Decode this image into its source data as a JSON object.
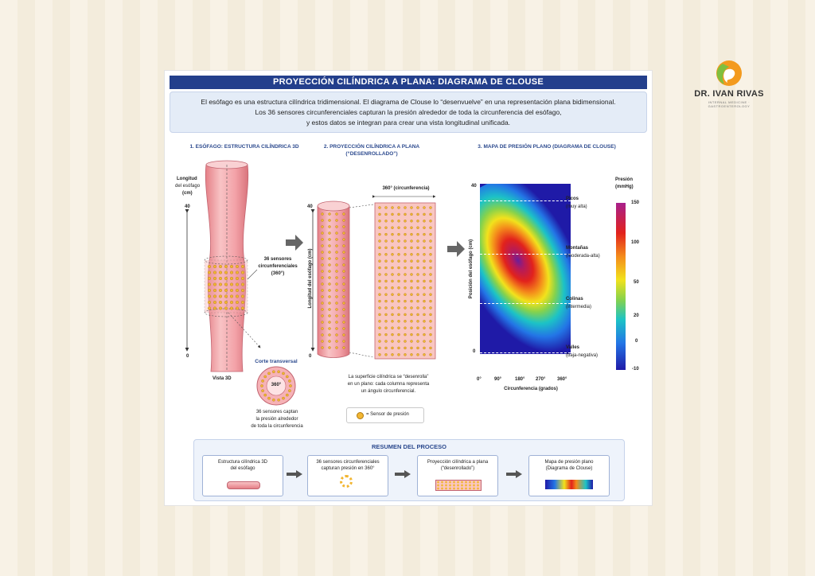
{
  "logo": {
    "name": "DR. IVAN RIVAS",
    "sub": "INTERNAL MEDICINE · GASTROENTEROLOGY"
  },
  "title": "PROYECCIÓN CILÍNDRICA A PLANA: DIAGRAMA DE CLOUSE",
  "intro": [
    "El esófago es una estructura cilíndrica tridimensional.  El diagrama de Clouse lo “desenvuelve” en una representación plana bidimensional.",
    "Los 36 sensores circunferenciales capturan la presión alrededor de toda la circunferencia del esófago,",
    "y estos datos se integran para crear una vista longitudinal unificada."
  ],
  "section1": {
    "title": "1. ESÓFAGO: ESTRUCTURA CILÍNDRICA 3D",
    "axis_label": [
      "Longitud",
      "del esófago",
      "(cm)"
    ],
    "tick_top": "40",
    "tick_bottom": "0",
    "sensors_label": [
      "36 sensores",
      "circunferenciales",
      "(360°)"
    ],
    "view_label": "Vista 3D",
    "cross_title": "Corte transversal",
    "cross_value": "360°",
    "cross_caption": [
      "36 sensores captan",
      "la presión alrededor",
      "de toda la circunferencia"
    ]
  },
  "section2": {
    "title": [
      "2. PROYECCIÓN CILÍNDRICA A PLANA",
      "(“DESENROLLADO”)"
    ],
    "axis_label": "Longitud del esófago (cm)",
    "tick_top": "40",
    "tick_bottom": "0",
    "circ_label": "360° (circunferencia)",
    "caption": [
      "La superficie cilíndrica se “desenrolla”",
      "en un plano: cada columna representa",
      "un ángulo circunferencial."
    ],
    "legend": "= Sensor de presión"
  },
  "section3": {
    "title": "3. MAPA DE PRESIÓN PLANO (DIAGRAMA DE CLOUSE)",
    "ylabel": "Posición del esófago (cm)",
    "xlabel": "Circunferencia (grados)",
    "y_top": "40",
    "y_bottom": "0",
    "x_ticks": [
      "0°",
      "90°",
      "180°",
      "270°",
      "360°"
    ],
    "annotations": [
      {
        "title": "Picos",
        "sub": "(muy alta)"
      },
      {
        "title": "Montañas",
        "sub": "(moderada-alta)"
      },
      {
        "title": "Colinas",
        "sub": "(intermedia)"
      },
      {
        "title": "Valles",
        "sub": "(baja-negativa)"
      }
    ],
    "colorbar_title": [
      "Presión",
      "(mmHg)"
    ],
    "colorbar_ticks": [
      "150",
      "100",
      "50",
      "20",
      "0",
      "-10"
    ]
  },
  "summary": {
    "title": "RESUMEN DEL PROCESO",
    "steps": [
      [
        "Estructura cilíndrica 3D",
        "del esófago"
      ],
      [
        "36 sensores circunferenciales",
        "capturan presión en 360°"
      ],
      [
        "Proyección cilíndrica a plana",
        "(“desenrollado”)"
      ],
      [
        "Mapa de presión plano",
        "(Diagrama de Clouse)"
      ]
    ]
  },
  "colors": {
    "title_bar": "#233f8c",
    "tissue": "#f4a7ab",
    "sensor": "#f2b632",
    "section_title": "#2c4a8e"
  }
}
